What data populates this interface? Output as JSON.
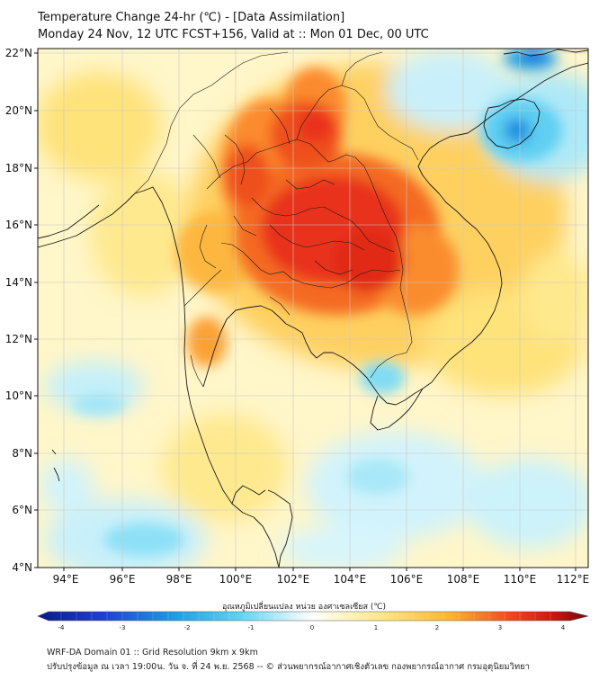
{
  "header": {
    "title": "Temperature Change 24-hr (℃) - [Data Assimilation]",
    "subtitle": "Monday 24 Nov, 12 UTC FCST+156, Valid at :: Mon 01 Dec, 00 UTC"
  },
  "map": {
    "lat_ticks": [
      "22°N",
      "20°N",
      "18°N",
      "16°N",
      "14°N",
      "12°N",
      "10°N",
      "8°N",
      "6°N",
      "4°N"
    ],
    "lon_ticks": [
      "94°E",
      "96°E",
      "98°E",
      "100°E",
      "102°E",
      "104°E",
      "106°E",
      "108°E",
      "110°E",
      "112°E"
    ]
  },
  "colorbar": {
    "label": "อุณหภูมิเปลี่ยนแปลง หน่วย องศาเซลเซียส (℃)",
    "ticks": [
      "-4",
      "-3",
      "-2",
      "-1",
      "0",
      "1",
      "2",
      "3",
      "4"
    ]
  },
  "footer": {
    "line1": "WRF-DA Domain 01 :: Grid Resolution 9km x 9km",
    "line2": "ปรับปรุงข้อมูล ณ เวลา 19:00น. วัน จ. ที่ 24 พ.ย. 2568 -- © ส่วนพยากรณ์อากาศเชิงตัวเลข กองพยากรณ์อากาศ กรมอุตุนิยมวิทยา"
  },
  "colors": {
    "warm_core": "#e31a1c",
    "warm_mid": "#fd8d3c",
    "warm_low": "#fed976",
    "cool_low": "#9ee8f5",
    "cool_mid": "#22b8e8",
    "cool_core": "#0a4ec7"
  }
}
